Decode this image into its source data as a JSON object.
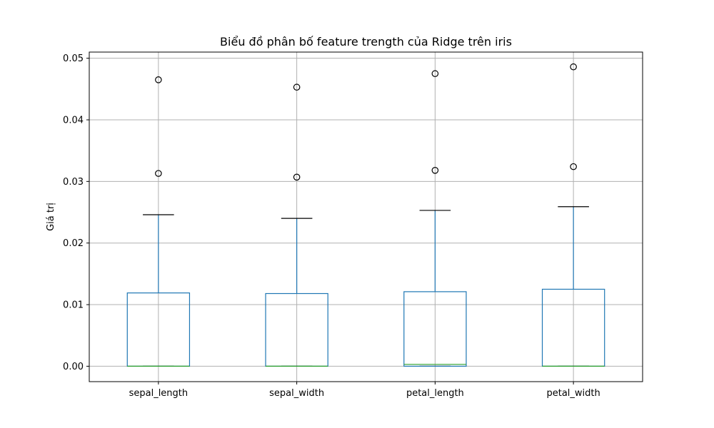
{
  "chart_data": {
    "type": "box",
    "title": "Biểu đồ phân bố feature trength của Ridge trên iris",
    "xlabel": "",
    "ylabel": "Giá trị",
    "categories": [
      "sepal_length",
      "sepal_width",
      "petal_length",
      "petal_width"
    ],
    "ylim": [
      -0.0025,
      0.051
    ],
    "yticks": [
      "0.00",
      "0.01",
      "0.02",
      "0.03",
      "0.04",
      "0.05"
    ],
    "grid": true,
    "boxes": [
      {
        "category": "sepal_length",
        "whisker_low": 0.0,
        "q1": 0.0,
        "median": 0.0,
        "q3": 0.0119,
        "whisker_high": 0.0246,
        "outliers": [
          0.0313,
          0.0465
        ]
      },
      {
        "category": "sepal_width",
        "whisker_low": 0.0,
        "q1": 0.0,
        "median": 0.0,
        "q3": 0.0118,
        "whisker_high": 0.024,
        "outliers": [
          0.0307,
          0.0453
        ]
      },
      {
        "category": "petal_length",
        "whisker_low": 0.0,
        "q1": 0.0,
        "median": 0.0003,
        "q3": 0.0121,
        "whisker_high": 0.0253,
        "outliers": [
          0.0318,
          0.0475
        ]
      },
      {
        "category": "petal_width",
        "whisker_low": 0.0,
        "q1": 0.0,
        "median": 0.0,
        "q3": 0.0125,
        "whisker_high": 0.0259,
        "outliers": [
          0.0324,
          0.0486
        ]
      }
    ],
    "colors": {
      "box": "#1f77b4",
      "median": "#2ca02c",
      "whisker_cap": "#000000",
      "outlier_edge": "#000000",
      "grid": "#b0b0b0"
    }
  }
}
